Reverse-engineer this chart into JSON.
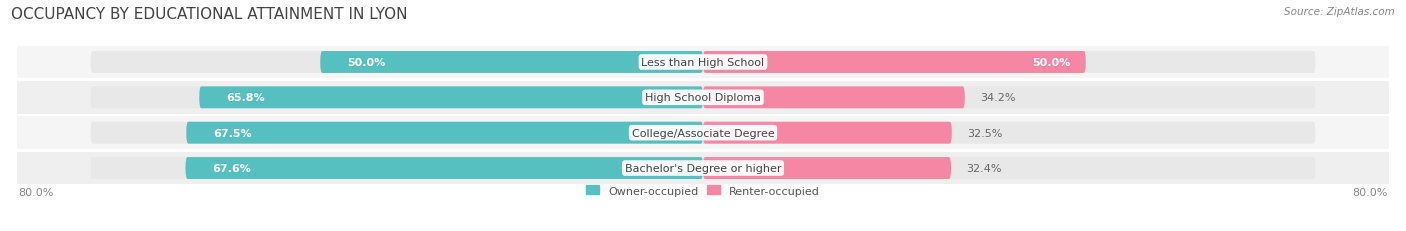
{
  "title": "OCCUPANCY BY EDUCATIONAL ATTAINMENT IN LYON",
  "source": "Source: ZipAtlas.com",
  "categories": [
    "Less than High School",
    "High School Diploma",
    "College/Associate Degree",
    "Bachelor's Degree or higher"
  ],
  "owner_values": [
    50.0,
    65.8,
    67.5,
    67.6
  ],
  "renter_values": [
    50.0,
    34.2,
    32.5,
    32.4
  ],
  "owner_color": "#56C0C0",
  "renter_color": "#F586A4",
  "bg_color": "#ffffff",
  "bar_bg_color": "#e8e8e8",
  "row_bg_color": "#f5f5f5",
  "axis_min": 0.0,
  "axis_max": 80.0,
  "axis_label_left": "80.0%",
  "axis_label_right": "80.0%",
  "bar_height": 0.62,
  "title_fontsize": 11,
  "source_fontsize": 7.5,
  "value_label_fontsize": 8,
  "category_fontsize": 8,
  "legend_fontsize": 8,
  "axis_label_fontsize": 8
}
